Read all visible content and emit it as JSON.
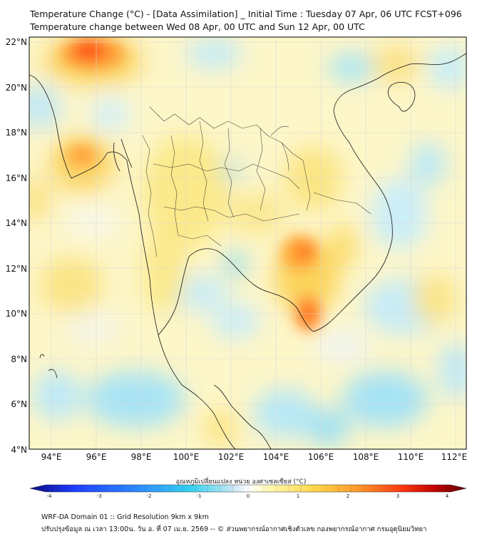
{
  "title_line1": "Temperature Change (°C) - [Data Assimilation] _ Initial Time : Tuesday 07 Apr, 06 UTC FCST+096",
  "title_line2": "Temperature change between Wed 08 Apr, 00 UTC and Sun 12 Apr, 00 UTC",
  "lat_labels": [
    "22°N",
    "20°N",
    "18°N",
    "16°N",
    "14°N",
    "12°N",
    "10°N",
    "8°N",
    "6°N",
    "4°N"
  ],
  "lon_labels": [
    "94°E",
    "96°E",
    "98°E",
    "100°E",
    "102°E",
    "104°E",
    "106°E",
    "108°E",
    "110°E",
    "112°E"
  ],
  "colorbar": {
    "label": "อุณหภูมิเปลี่ยนแปลง หน่วย องศาเซลเซียส (°C)",
    "ticks": [
      "-4",
      "-3",
      "-2",
      "-1",
      "0",
      "1",
      "2",
      "3",
      "4"
    ],
    "colors": [
      "#0a0a80",
      "#1e3cff",
      "#2d8cff",
      "#35d2f0",
      "#cfe8f5",
      "#ffffff",
      "#fff8b0",
      "#ffd84a",
      "#ff9a2a",
      "#ff3a10",
      "#c00000",
      "#600000"
    ]
  },
  "footer_line1": "WRF-DA Domain 01 :: Grid Resolution 9km x 9km",
  "footer_line2": "ปรับปรุงข้อมูล ณ เวลา 13:00น. วัน อ. ที่ 07 เม.ย. 2569 -- © ส่วนพยากรณ์อากาศเชิงตัวเลข กองพยากรณ์อากาศ กรมอุตุนิยมวิทยา"
}
